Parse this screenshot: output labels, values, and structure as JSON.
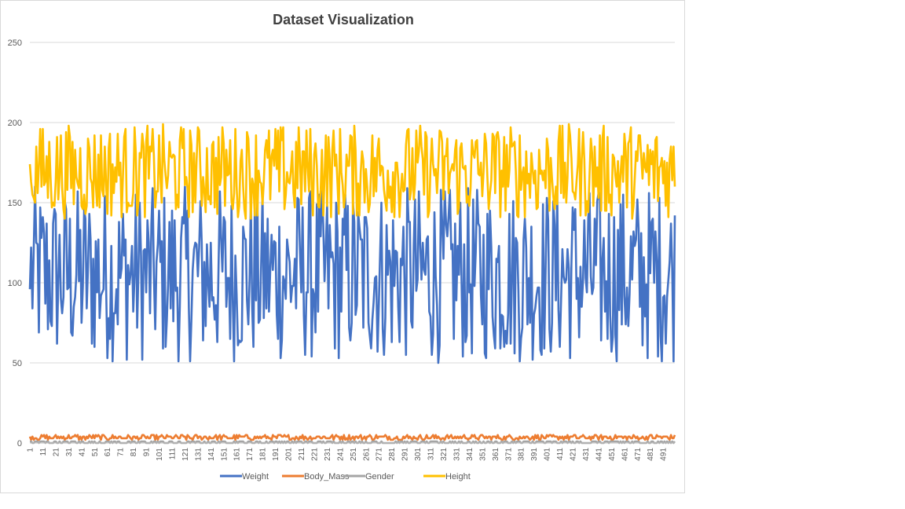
{
  "chart_data": {
    "type": "line",
    "title": "Dataset  Visualization",
    "xlabel": "",
    "ylabel": "",
    "ylim": [
      0,
      250
    ],
    "yticks": [
      0,
      50,
      100,
      150,
      200,
      250
    ],
    "x_range": [
      1,
      500
    ],
    "x_tick_labels": [
      "1",
      "11",
      "21",
      "31",
      "41",
      "51",
      "61",
      "71",
      "81",
      "91",
      "101",
      "111",
      "121",
      "131",
      "141",
      "151",
      "161",
      "171",
      "181",
      "191",
      "201",
      "211",
      "221",
      "231",
      "241",
      "251",
      "261",
      "271",
      "281",
      "291",
      "301",
      "311",
      "321",
      "331",
      "341",
      "351",
      "361",
      "371",
      "381",
      "391",
      "401",
      "411",
      "421",
      "431",
      "441",
      "451",
      "461",
      "471",
      "481",
      "491"
    ],
    "grid": "horizontal",
    "legend_position": "bottom",
    "series": [
      {
        "name": "Weight",
        "color": "#4472C4",
        "value_range": [
          50,
          160
        ],
        "start_value": 96
      },
      {
        "name": "Body_Mass",
        "color": "#ED7D31",
        "value_range": [
          2,
          5
        ],
        "start_value": 4
      },
      {
        "name": "Gender",
        "color": "#A5A5A5",
        "value_range": [
          0,
          1
        ],
        "start_value": 1
      },
      {
        "name": "Height",
        "color": "#FFC000",
        "value_range": [
          140,
          199
        ],
        "start_value": 174
      }
    ]
  }
}
